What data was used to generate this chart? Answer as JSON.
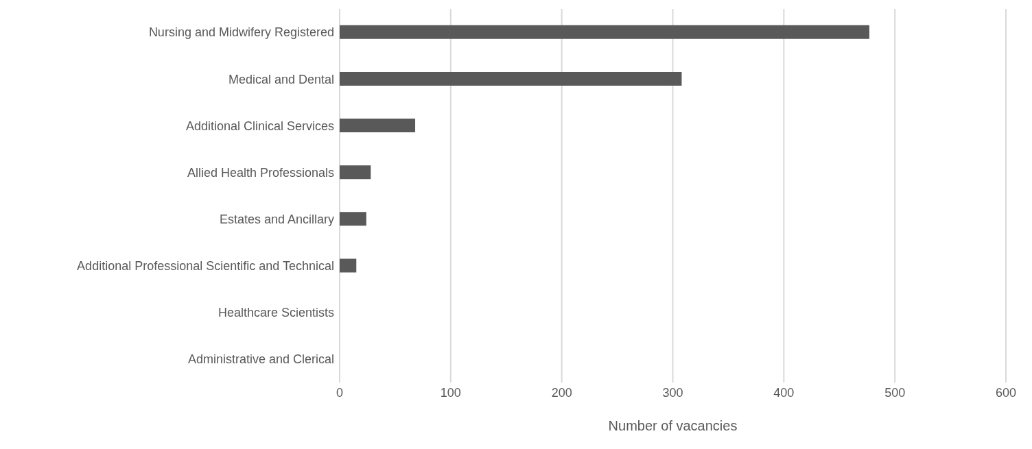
{
  "chart_data": {
    "type": "bar",
    "orientation": "horizontal",
    "xlabel": "Number of vacancies",
    "categories": [
      "Nursing and Midwifery Registered",
      "Medical and Dental",
      "Additional Clinical Services",
      "Allied Health Professionals",
      "Estates and Ancillary",
      "Additional Professional Scientific and Technical",
      "Healthcare Scientists",
      "Administrative and Clerical"
    ],
    "values": [
      477,
      308,
      68,
      28,
      24,
      15,
      0,
      0
    ],
    "color": "#595959",
    "xlim": [
      0,
      600
    ],
    "xticks": [
      0,
      100,
      200,
      300,
      400,
      500,
      600
    ],
    "grid": "x",
    "legend": false
  }
}
